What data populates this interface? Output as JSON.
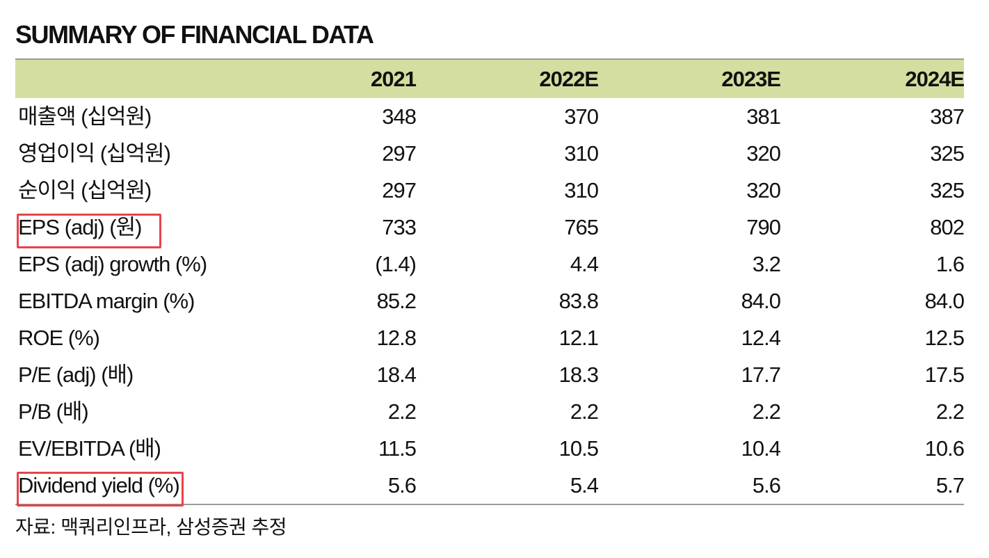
{
  "title": "SUMMARY OF FINANCIAL DATA",
  "columns": [
    "2021",
    "2022E",
    "2023E",
    "2024E"
  ],
  "rows": [
    {
      "label": "매출액 (십억원)",
      "values": [
        "348",
        "370",
        "381",
        "387"
      ]
    },
    {
      "label": "영업이익 (십억원)",
      "values": [
        "297",
        "310",
        "320",
        "325"
      ]
    },
    {
      "label": "순이익 (십억원)",
      "values": [
        "297",
        "310",
        "320",
        "325"
      ]
    },
    {
      "label": "EPS (adj) (원)",
      "values": [
        "733",
        "765",
        "790",
        "802"
      ],
      "highlighted": true
    },
    {
      "label": "EPS (adj) growth (%)",
      "values": [
        "(1.4)",
        "4.4",
        "3.2",
        "1.6"
      ]
    },
    {
      "label": "EBITDA margin (%)",
      "values": [
        "85.2",
        "83.8",
        "84.0",
        "84.0"
      ]
    },
    {
      "label": "ROE (%)",
      "values": [
        "12.8",
        "12.1",
        "12.4",
        "12.5"
      ]
    },
    {
      "label": "P/E (adj) (배)",
      "values": [
        "18.4",
        "18.3",
        "17.7",
        "17.5"
      ]
    },
    {
      "label": "P/B (배)",
      "values": [
        "2.2",
        "2.2",
        "2.2",
        "2.2"
      ]
    },
    {
      "label": "EV/EBITDA (배)",
      "values": [
        "11.5",
        "10.5",
        "10.4",
        "10.6"
      ]
    },
    {
      "label": "Dividend yield (%)",
      "values": [
        "5.6",
        "5.4",
        "5.6",
        "5.7"
      ],
      "highlighted": true
    }
  ],
  "source": "자료: 맥쿼리인프라, 삼성증권 추정",
  "colors": {
    "header_background": "#d4dea0",
    "highlight_border": "#e8434b",
    "rule": "#9a9a9a"
  }
}
